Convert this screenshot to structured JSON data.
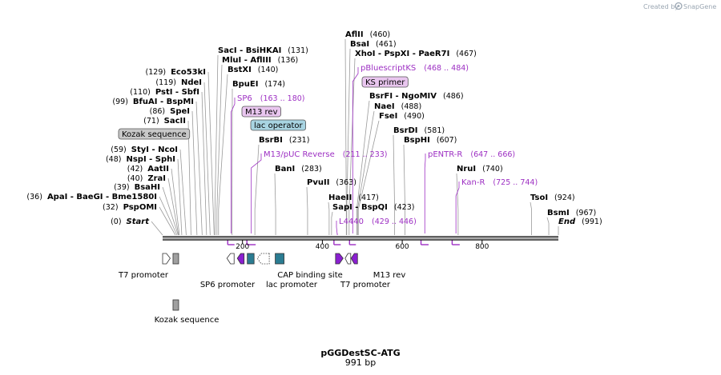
{
  "credit": {
    "text": "Created by",
    "brand": "SnapGene"
  },
  "map": {
    "title": "pGGDestSC-ATG",
    "length_label": "991 bp",
    "total_bp": 991,
    "ticks": [
      "200",
      "400",
      "600",
      "800"
    ],
    "tick_values": [
      200,
      400,
      600,
      800
    ]
  },
  "colors": {
    "primer": "#9d2fc3",
    "feature_teal": "#2b7c92",
    "feature_gray": "#a0a0a0",
    "feature_purple": "#8a1fd0",
    "m13_box": "#e9c6ef",
    "lac_box": "#a8d4e2",
    "kozak_box": "#c8c8c8"
  },
  "sites": [
    {
      "group": "left",
      "label": "Start",
      "pos_label": "(0)",
      "bp": 0,
      "italic": true
    },
    {
      "group": "left",
      "label": "PspOMI",
      "pos_label": "(32)",
      "bp": 32
    },
    {
      "group": "left",
      "label": "ApaI   - BaeGI   - Bme1580I",
      "pos_label": "(36)",
      "bp": 36
    },
    {
      "group": "left",
      "label": "BsaHI",
      "pos_label": "(39)",
      "bp": 39
    },
    {
      "group": "left",
      "label": "ZraI",
      "pos_label": "(40)",
      "bp": 40
    },
    {
      "group": "left",
      "label": "AatII",
      "pos_label": "(42)",
      "bp": 42
    },
    {
      "group": "left",
      "label": "NspI   - SphI",
      "pos_label": "(48)",
      "bp": 48
    },
    {
      "group": "left",
      "label": "StyI   - NcoI",
      "pos_label": "(59)",
      "bp": 59
    },
    {
      "group": "left",
      "label": "SacII",
      "pos_label": "(71)",
      "bp": 71
    },
    {
      "group": "left",
      "label": "SpeI",
      "pos_label": "(86)",
      "bp": 86
    },
    {
      "group": "left",
      "label": "BfuAI   - BspMI",
      "pos_label": "(99)",
      "bp": 99
    },
    {
      "group": "left",
      "label": "PstI   - SbfI",
      "pos_label": "(110)",
      "bp": 110
    },
    {
      "group": "left",
      "label": "NdeI",
      "pos_label": "(119)",
      "bp": 119
    },
    {
      "group": "left",
      "label": "Eco53kI",
      "pos_label": "(129)",
      "bp": 129
    },
    {
      "group": "right",
      "label": "SacI   - BsiHKAI",
      "pos_label": "(131)",
      "bp": 131
    },
    {
      "group": "right",
      "label": "MluI   - AflIII",
      "pos_label": "(136)",
      "bp": 136
    },
    {
      "group": "right",
      "label": "BstXI",
      "pos_label": "(140)",
      "bp": 140
    },
    {
      "group": "right",
      "label": "BpuEI",
      "pos_label": "(174)",
      "bp": 174
    },
    {
      "group": "right",
      "label": "BsrBI",
      "pos_label": "(231)",
      "bp": 231
    },
    {
      "group": "right",
      "label": "BanI",
      "pos_label": "(283)",
      "bp": 283
    },
    {
      "group": "right",
      "label": "PvuII",
      "pos_label": "(363)",
      "bp": 363
    },
    {
      "group": "right",
      "label": "HaeII",
      "pos_label": "(417)",
      "bp": 417
    },
    {
      "group": "right",
      "label": "SapI   - BspQI",
      "pos_label": "(423)",
      "bp": 423
    },
    {
      "group": "right",
      "label": "AflII",
      "pos_label": "(460)",
      "bp": 460
    },
    {
      "group": "right",
      "label": "BsaI",
      "pos_label": "(461)",
      "bp": 461
    },
    {
      "group": "right",
      "label": "XhoI   - PspXI   - PaeR7I",
      "pos_label": "(467)",
      "bp": 467
    },
    {
      "group": "right",
      "label": "BsrFI   - NgoMIV",
      "pos_label": "(486)",
      "bp": 486
    },
    {
      "group": "right",
      "label": "NaeI",
      "pos_label": "(488)",
      "bp": 488
    },
    {
      "group": "right",
      "label": "FseI",
      "pos_label": "(490)",
      "bp": 490
    },
    {
      "group": "right",
      "label": "BsrDI",
      "pos_label": "(581)",
      "bp": 581
    },
    {
      "group": "right",
      "label": "BspHI",
      "pos_label": "(607)",
      "bp": 607
    },
    {
      "group": "right",
      "label": "NruI",
      "pos_label": "(740)",
      "bp": 740
    },
    {
      "group": "right",
      "label": "TsoI",
      "pos_label": "(924)",
      "bp": 924
    },
    {
      "group": "right",
      "label": "BsmI",
      "pos_label": "(967)",
      "bp": 967
    },
    {
      "group": "right",
      "label": "End",
      "pos_label": "(991)",
      "bp": 991,
      "italic": true
    }
  ],
  "primers": [
    {
      "label": "SP6",
      "range": "(163 .. 180)",
      "start": 163,
      "end": 180
    },
    {
      "label": "M13/pUC Reverse",
      "range": "(211 .. 233)",
      "start": 211,
      "end": 233
    },
    {
      "label": "pBluescriptKS",
      "range": "(468 .. 484)",
      "start": 468,
      "end": 484
    },
    {
      "label": "L4440",
      "range": "(429 .. 446)",
      "start": 429,
      "end": 446
    },
    {
      "label": "pENTR-R",
      "range": "(647 .. 666)",
      "start": 647,
      "end": 666
    },
    {
      "label": "Kan-R",
      "range": "(725 .. 744)",
      "start": 725,
      "end": 744
    }
  ],
  "boxed_labels": [
    {
      "label": "Kozak sequence",
      "kind": "kozak"
    },
    {
      "label": "M13 rev",
      "kind": "m13"
    },
    {
      "label": "lac operator",
      "kind": "lac"
    },
    {
      "label": "KS primer",
      "kind": "m13"
    }
  ],
  "features": [
    {
      "label": "T7 promoter",
      "start": 0,
      "end": 19,
      "shape": "arrow-right",
      "style": "outline",
      "track": 1
    },
    {
      "label": "Kozak sequence",
      "start": 26,
      "end": 36,
      "shape": "rect",
      "style": "gray",
      "track": 1
    },
    {
      "label": "SP6 promoter",
      "start": 161,
      "end": 179,
      "shape": "arrow-left",
      "style": "outline",
      "track": 1
    },
    {
      "label": "M13 rev",
      "start": 187,
      "end": 204,
      "shape": "arrow-left",
      "style": "purple",
      "track": 1
    },
    {
      "label": "lac operator",
      "start": 212,
      "end": 229,
      "shape": "rect",
      "style": "teal",
      "track": 1
    },
    {
      "label": "lac promoter",
      "start": 237,
      "end": 267,
      "shape": "arrow-left",
      "style": "dotted",
      "track": 1
    },
    {
      "label": "CAP binding site",
      "start": 282,
      "end": 304,
      "shape": "rect",
      "style": "teal",
      "track": 1
    },
    {
      "label": "T7 promoter",
      "start": 433,
      "end": 452,
      "shape": "arrow-right",
      "style": "purple",
      "track": 1
    },
    {
      "label": "",
      "start": 457,
      "end": 468,
      "shape": "arrow-left",
      "style": "outline",
      "track": 1
    },
    {
      "label": "M13 rev",
      "start": 472,
      "end": 488,
      "shape": "arrow-left",
      "style": "purple",
      "track": 1
    },
    {
      "label": "Kozak sequence",
      "start": 26,
      "end": 36,
      "shape": "rect",
      "style": "gray",
      "track": 2
    }
  ],
  "feature_labels": [
    "T7 promoter",
    "SP6 promoter",
    "lac promoter",
    "CAP binding site",
    "T7 promoter",
    "M13 rev",
    "Kozak sequence"
  ]
}
